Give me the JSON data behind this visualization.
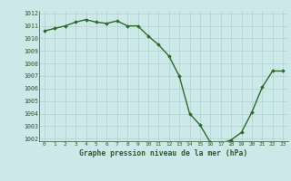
{
  "x": [
    0,
    1,
    2,
    3,
    4,
    5,
    6,
    7,
    8,
    9,
    10,
    11,
    12,
    13,
    14,
    15,
    16,
    17,
    18,
    19,
    20,
    21,
    22,
    23
  ],
  "y": [
    1010.6,
    1010.8,
    1011.0,
    1011.3,
    1011.5,
    1011.3,
    1011.2,
    1011.4,
    1011.0,
    1011.0,
    1010.2,
    1009.5,
    1008.6,
    1007.0,
    1004.0,
    1003.1,
    1001.7,
    1001.6,
    1001.9,
    1002.5,
    1004.1,
    1006.1,
    1007.4,
    1007.4
  ],
  "ylim": [
    1002,
    1012
  ],
  "xlim": [
    -0.5,
    23.5
  ],
  "yticks": [
    1002,
    1003,
    1004,
    1005,
    1006,
    1007,
    1008,
    1009,
    1010,
    1011,
    1012
  ],
  "xticks": [
    0,
    1,
    2,
    3,
    4,
    5,
    6,
    7,
    8,
    9,
    10,
    11,
    12,
    13,
    14,
    15,
    16,
    17,
    18,
    19,
    20,
    21,
    22,
    23
  ],
  "xlabel": "Graphe pression niveau de la mer (hPa)",
  "line_color": "#2d6a2d",
  "marker": "D",
  "marker_size": 1.8,
  "bg_color": "#cce8e8",
  "grid_color": "#aacece",
  "tick_label_color": "#2d5a2d",
  "xlabel_color": "#2d5a2d",
  "line_width": 1.0
}
